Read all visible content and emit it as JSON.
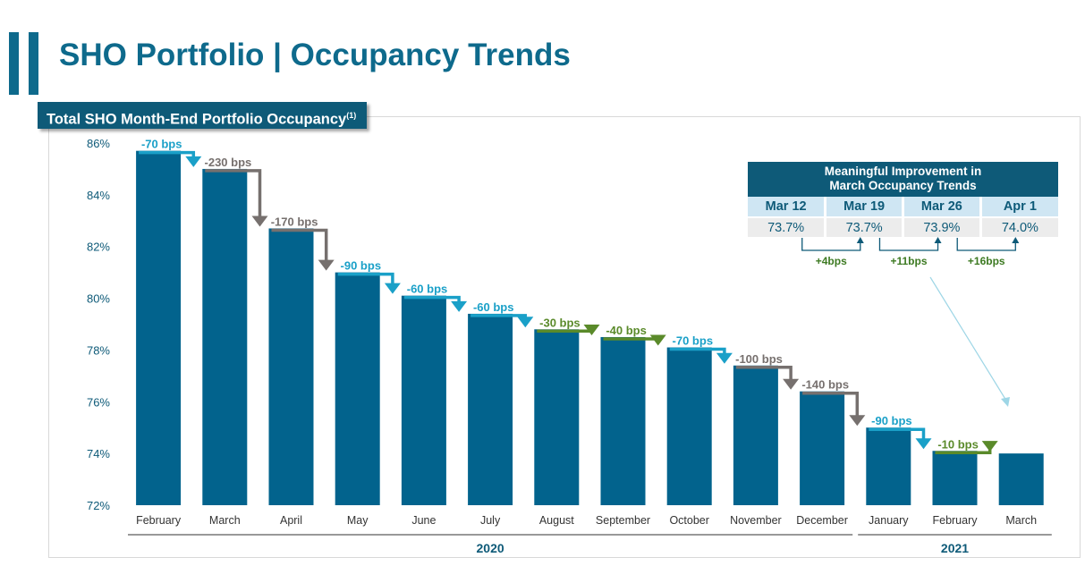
{
  "header": {
    "title": "SHO Portfolio | Occupancy Trends",
    "subtitle": "Total SHO Month-End Portfolio Occupancy",
    "footnote_marker": "(1)"
  },
  "colors": {
    "bar": "#02638d",
    "teal_arrow": "#1aa0c8",
    "gray_arrow": "#76706e",
    "green_arrow": "#5a8a2a",
    "title": "#0e6a8c"
  },
  "chart_data": {
    "type": "bar",
    "title": "Total SHO Month-End Portfolio Occupancy",
    "categories": [
      "February",
      "March",
      "April",
      "May",
      "June",
      "July",
      "August",
      "September",
      "October",
      "November",
      "December",
      "January",
      "February",
      "March"
    ],
    "values": [
      85.7,
      85.0,
      82.7,
      81.0,
      80.1,
      79.4,
      78.8,
      78.5,
      78.1,
      77.4,
      76.4,
      75.0,
      74.1,
      74.0
    ],
    "ylim": [
      72,
      86
    ],
    "yticks": [
      72,
      74,
      76,
      78,
      80,
      82,
      84,
      86
    ],
    "ytick_labels": [
      "72%",
      "74%",
      "76%",
      "78%",
      "80%",
      "82%",
      "84%",
      "86%"
    ],
    "changes": [
      {
        "label": "-70 bps",
        "color": "teal"
      },
      {
        "label": "-230 bps",
        "color": "gray"
      },
      {
        "label": "-170 bps",
        "color": "gray"
      },
      {
        "label": "-90 bps",
        "color": "teal"
      },
      {
        "label": "-60 bps",
        "color": "teal"
      },
      {
        "label": "-60 bps",
        "color": "teal"
      },
      {
        "label": "-30 bps",
        "color": "green"
      },
      {
        "label": "-40 bps",
        "color": "green"
      },
      {
        "label": "-70 bps",
        "color": "teal"
      },
      {
        "label": "-100 bps",
        "color": "gray"
      },
      {
        "label": "-140 bps",
        "color": "gray"
      },
      {
        "label": "-90 bps",
        "color": "teal"
      },
      {
        "label": "-10 bps",
        "color": "green"
      }
    ],
    "year_groups": [
      {
        "label": "2020",
        "start": 0,
        "end": 10
      },
      {
        "label": "2021",
        "start": 11,
        "end": 13
      }
    ]
  },
  "inset": {
    "title_line1": "Meaningful Improvement in",
    "title_line2": "March Occupancy Trends",
    "columns": [
      "Mar 12",
      "Mar 19",
      "Mar 26",
      "Apr 1"
    ],
    "values": [
      "73.7%",
      "73.7%",
      "73.9%",
      "74.0%"
    ],
    "improvements": [
      "+4bps",
      "+11bps",
      "+16bps"
    ]
  }
}
